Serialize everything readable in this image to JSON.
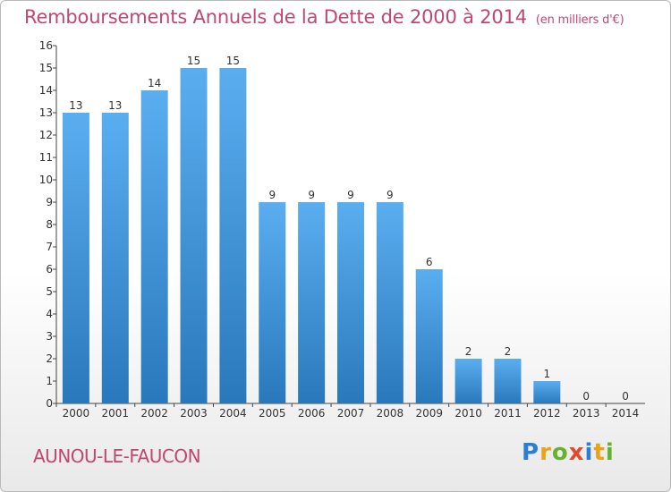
{
  "title": "Remboursements Annuels de la Dette de 2000 à 2014",
  "unit": "(en milliers d'€)",
  "commune": "AUNOU-LE-FAUCON",
  "logo": {
    "letters": [
      {
        "ch": "P",
        "color": "#2a7fd4"
      },
      {
        "ch": "r",
        "color": "#e8a21c"
      },
      {
        "ch": "o",
        "color": "#66b22e"
      },
      {
        "ch": "x",
        "color": "#e24a2b"
      },
      {
        "ch": "i",
        "color": "#2a7fd4"
      },
      {
        "ch": "t",
        "color": "#e8a21c"
      },
      {
        "ch": "i",
        "color": "#66b22e"
      }
    ]
  },
  "colors": {
    "bar_top": "#5aaef0",
    "bar_bottom": "#2a78bc",
    "title": "#c0476f"
  },
  "chart_data": {
    "type": "bar",
    "title": "Remboursements Annuels de la Dette de 2000 à 2014",
    "categories": [
      "2000",
      "2001",
      "2002",
      "2003",
      "2004",
      "2005",
      "2006",
      "2007",
      "2008",
      "2009",
      "2010",
      "2011",
      "2012",
      "2013",
      "2014"
    ],
    "values": [
      13,
      13,
      14,
      15,
      15,
      9,
      9,
      9,
      9,
      6,
      2,
      2,
      1,
      0,
      0
    ],
    "yticks": [
      "0",
      "1",
      "2",
      "3",
      "4",
      "5",
      "6",
      "7",
      "8",
      "9",
      "10",
      "11",
      "12",
      "13",
      "14",
      "15",
      "16"
    ],
    "ylim": [
      0,
      16
    ],
    "grid": false
  }
}
